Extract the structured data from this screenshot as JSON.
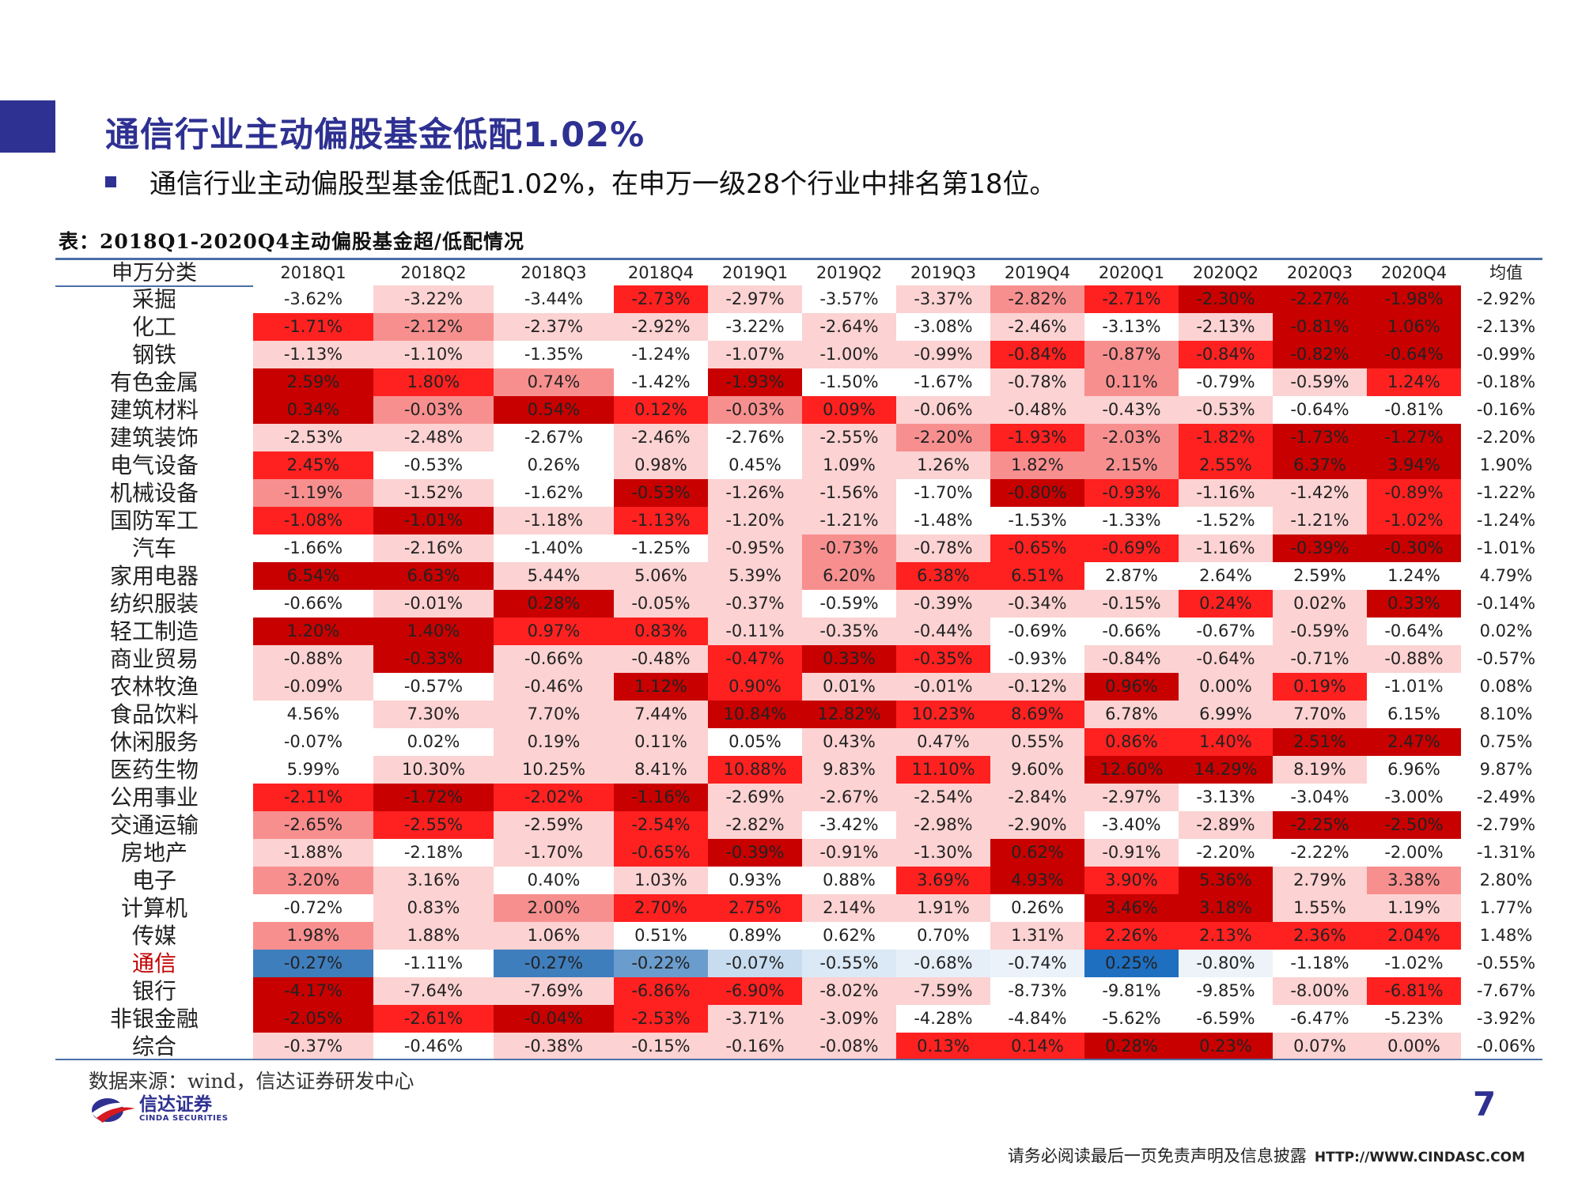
{
  "title": "通信行业主动偏股基金低配1.02%",
  "bullet_text": "通信行业主动偏股型基金低配1.02%，在申万一级28个行业中排名第18位。",
  "table_caption": "表：2018Q1-2020Q4主动偏股基金超/低配情况",
  "table": {
    "header": [
      "申万分类",
      "2018Q1",
      "2018Q2",
      "2018Q3",
      "2018Q4",
      "2019Q1",
      "2019Q2",
      "2019Q3",
      "2019Q4",
      "2020Q1",
      "2020Q2",
      "2020Q3",
      "2020Q4",
      "均值"
    ],
    "highlight_industry": "通信",
    "rows": [
      {
        "name": "采掘",
        "values": [
          "-3.62%",
          "-3.22%",
          "-3.44%",
          "-2.73%",
          "-2.97%",
          "-3.57%",
          "-3.37%",
          "-2.82%",
          "-2.71%",
          "-2.30%",
          "-2.27%",
          "-1.98%"
        ],
        "mean": "-2.92%",
        "colors": [
          "#ffffff",
          "#fcd2d2",
          "#ffffff",
          "#ff2020",
          "#fcd2d2",
          "#ffffff",
          "#fcd2d2",
          "#f88f8f",
          "#ff2020",
          "#c80000",
          "#c80000",
          "#c80000"
        ]
      },
      {
        "name": "化工",
        "values": [
          "-1.71%",
          "-2.12%",
          "-2.37%",
          "-2.92%",
          "-3.22%",
          "-2.64%",
          "-3.08%",
          "-2.46%",
          "-3.13%",
          "-2.13%",
          "-0.81%",
          "1.06%"
        ],
        "mean": "-2.13%",
        "colors": [
          "#ff2020",
          "#f88f8f",
          "#fcd2d2",
          "#fcd2d2",
          "#ffffff",
          "#fcd2d2",
          "#ffffff",
          "#fcd2d2",
          "#ffffff",
          "#fcd2d2",
          "#c80000",
          "#c80000"
        ]
      },
      {
        "name": "钢铁",
        "values": [
          "-1.13%",
          "-1.10%",
          "-1.35%",
          "-1.24%",
          "-1.07%",
          "-1.00%",
          "-0.99%",
          "-0.84%",
          "-0.87%",
          "-0.84%",
          "-0.82%",
          "-0.64%"
        ],
        "mean": "-0.99%",
        "colors": [
          "#fcd2d2",
          "#fcd2d2",
          "#ffffff",
          "#ffffff",
          "#fcd2d2",
          "#fcd2d2",
          "#fcd2d2",
          "#ff2020",
          "#f88f8f",
          "#ff2020",
          "#c80000",
          "#c80000"
        ]
      },
      {
        "name": "有色金属",
        "values": [
          "2.59%",
          "1.80%",
          "0.74%",
          "-1.42%",
          "-1.93%",
          "-1.50%",
          "-1.67%",
          "-0.78%",
          "0.11%",
          "-0.79%",
          "-0.59%",
          "1.24%"
        ],
        "mean": "-0.18%",
        "colors": [
          "#c80000",
          "#ff2020",
          "#f88f8f",
          "#ffffff",
          "#c80000",
          "#ffffff",
          "#ffffff",
          "#fcd2d2",
          "#f88f8f",
          "#ffffff",
          "#fcd2d2",
          "#ff2020"
        ]
      },
      {
        "name": "建筑材料",
        "values": [
          "0.34%",
          "-0.03%",
          "0.54%",
          "0.12%",
          "-0.03%",
          "0.09%",
          "-0.06%",
          "-0.48%",
          "-0.43%",
          "-0.53%",
          "-0.64%",
          "-0.81%"
        ],
        "mean": "-0.16%",
        "colors": [
          "#c80000",
          "#f88f8f",
          "#c80000",
          "#ff2020",
          "#f88f8f",
          "#ff2020",
          "#fcd2d2",
          "#fcd2d2",
          "#fcd2d2",
          "#fcd2d2",
          "#ffffff",
          "#ffffff"
        ]
      },
      {
        "name": "建筑装饰",
        "values": [
          "-2.53%",
          "-2.48%",
          "-2.67%",
          "-2.46%",
          "-2.76%",
          "-2.55%",
          "-2.20%",
          "-1.93%",
          "-2.03%",
          "-1.82%",
          "-1.73%",
          "-1.27%"
        ],
        "mean": "-2.20%",
        "colors": [
          "#fcd2d2",
          "#fcd2d2",
          "#ffffff",
          "#fcd2d2",
          "#ffffff",
          "#fcd2d2",
          "#f88f8f",
          "#ff2020",
          "#f88f8f",
          "#ff2020",
          "#c80000",
          "#c80000"
        ]
      },
      {
        "name": "电气设备",
        "values": [
          "2.45%",
          "-0.53%",
          "0.26%",
          "0.98%",
          "0.45%",
          "1.09%",
          "1.26%",
          "1.82%",
          "2.15%",
          "2.55%",
          "6.37%",
          "3.94%"
        ],
        "mean": "1.90%",
        "colors": [
          "#ff2020",
          "#ffffff",
          "#ffffff",
          "#fcd2d2",
          "#ffffff",
          "#fcd2d2",
          "#fcd2d2",
          "#f88f8f",
          "#f88f8f",
          "#ff2020",
          "#c80000",
          "#c80000"
        ]
      },
      {
        "name": "机械设备",
        "values": [
          "-1.19%",
          "-1.52%",
          "-1.62%",
          "-0.53%",
          "-1.26%",
          "-1.56%",
          "-1.70%",
          "-0.80%",
          "-0.93%",
          "-1.16%",
          "-1.42%",
          "-0.89%"
        ],
        "mean": "-1.22%",
        "colors": [
          "#f88f8f",
          "#fcd2d2",
          "#ffffff",
          "#c80000",
          "#fcd2d2",
          "#fcd2d2",
          "#ffffff",
          "#c80000",
          "#ff2020",
          "#fcd2d2",
          "#fcd2d2",
          "#ff2020"
        ]
      },
      {
        "name": "国防军工",
        "values": [
          "-1.08%",
          "-1.01%",
          "-1.18%",
          "-1.13%",
          "-1.20%",
          "-1.21%",
          "-1.48%",
          "-1.53%",
          "-1.33%",
          "-1.52%",
          "-1.21%",
          "-1.02%"
        ],
        "mean": "-1.24%",
        "colors": [
          "#ff2020",
          "#c80000",
          "#fcd2d2",
          "#ff2020",
          "#fcd2d2",
          "#fcd2d2",
          "#ffffff",
          "#ffffff",
          "#ffffff",
          "#ffffff",
          "#fcd2d2",
          "#ff2020"
        ]
      },
      {
        "name": "汽车",
        "values": [
          "-1.66%",
          "-2.16%",
          "-1.40%",
          "-1.25%",
          "-0.95%",
          "-0.73%",
          "-0.78%",
          "-0.65%",
          "-0.69%",
          "-1.16%",
          "-0.39%",
          "-0.30%"
        ],
        "mean": "-1.01%",
        "colors": [
          "#ffffff",
          "#fcd2d2",
          "#ffffff",
          "#ffffff",
          "#fcd2d2",
          "#f88f8f",
          "#fcd2d2",
          "#ff2020",
          "#ff2020",
          "#fcd2d2",
          "#c80000",
          "#c80000"
        ]
      },
      {
        "name": "家用电器",
        "values": [
          "6.54%",
          "6.63%",
          "5.44%",
          "5.06%",
          "5.39%",
          "6.20%",
          "6.38%",
          "6.51%",
          "2.87%",
          "2.64%",
          "2.59%",
          "1.24%"
        ],
        "mean": "4.79%",
        "colors": [
          "#c80000",
          "#c80000",
          "#fcd2d2",
          "#fcd2d2",
          "#fcd2d2",
          "#f88f8f",
          "#ff2020",
          "#ff2020",
          "#ffffff",
          "#ffffff",
          "#ffffff",
          "#ffffff"
        ]
      },
      {
        "name": "纺织服装",
        "values": [
          "-0.66%",
          "-0.01%",
          "0.28%",
          "-0.05%",
          "-0.37%",
          "-0.59%",
          "-0.39%",
          "-0.34%",
          "-0.15%",
          "0.24%",
          "0.02%",
          "0.33%"
        ],
        "mean": "-0.14%",
        "colors": [
          "#ffffff",
          "#fcd2d2",
          "#c80000",
          "#fcd2d2",
          "#fcd2d2",
          "#ffffff",
          "#fcd2d2",
          "#fcd2d2",
          "#fcd2d2",
          "#ff2020",
          "#fcd2d2",
          "#c80000"
        ]
      },
      {
        "name": "轻工制造",
        "values": [
          "1.20%",
          "1.40%",
          "0.97%",
          "0.83%",
          "-0.11%",
          "-0.35%",
          "-0.44%",
          "-0.69%",
          "-0.66%",
          "-0.67%",
          "-0.59%",
          "-0.64%"
        ],
        "mean": "0.02%",
        "colors": [
          "#c80000",
          "#c80000",
          "#ff2020",
          "#ff2020",
          "#fcd2d2",
          "#fcd2d2",
          "#fcd2d2",
          "#ffffff",
          "#ffffff",
          "#ffffff",
          "#fcd2d2",
          "#ffffff"
        ]
      },
      {
        "name": "商业贸易",
        "values": [
          "-0.88%",
          "-0.33%",
          "-0.66%",
          "-0.48%",
          "-0.47%",
          "0.33%",
          "-0.35%",
          "-0.93%",
          "-0.84%",
          "-0.64%",
          "-0.71%",
          "-0.88%"
        ],
        "mean": "-0.57%",
        "colors": [
          "#fcd2d2",
          "#c80000",
          "#fcd2d2",
          "#fcd2d2",
          "#ff2020",
          "#c80000",
          "#ff2020",
          "#ffffff",
          "#fcd2d2",
          "#fcd2d2",
          "#fcd2d2",
          "#fcd2d2"
        ]
      },
      {
        "name": "农林牧渔",
        "values": [
          "-0.09%",
          "-0.57%",
          "-0.46%",
          "1.12%",
          "0.90%",
          "0.01%",
          "-0.01%",
          "-0.12%",
          "0.96%",
          "0.00%",
          "0.19%",
          "-1.01%"
        ],
        "mean": "0.08%",
        "colors": [
          "#fcd2d2",
          "#ffffff",
          "#fcd2d2",
          "#c80000",
          "#ff2020",
          "#fcd2d2",
          "#fcd2d2",
          "#fcd2d2",
          "#c80000",
          "#fcd2d2",
          "#ff2020",
          "#ffffff"
        ]
      },
      {
        "name": "食品饮料",
        "values": [
          "4.56%",
          "7.30%",
          "7.70%",
          "7.44%",
          "10.84%",
          "12.82%",
          "10.23%",
          "8.69%",
          "6.78%",
          "6.99%",
          "7.70%",
          "6.15%"
        ],
        "mean": "8.10%",
        "colors": [
          "#ffffff",
          "#fcd2d2",
          "#fcd2d2",
          "#fcd2d2",
          "#c80000",
          "#c80000",
          "#ff2020",
          "#ff2020",
          "#fcd2d2",
          "#fcd2d2",
          "#fcd2d2",
          "#ffffff"
        ]
      },
      {
        "name": "休闲服务",
        "values": [
          "-0.07%",
          "0.02%",
          "0.19%",
          "0.11%",
          "0.05%",
          "0.43%",
          "0.47%",
          "0.55%",
          "0.86%",
          "1.40%",
          "2.51%",
          "2.47%"
        ],
        "mean": "0.75%",
        "colors": [
          "#ffffff",
          "#ffffff",
          "#fcd2d2",
          "#fcd2d2",
          "#ffffff",
          "#fcd2d2",
          "#fcd2d2",
          "#fcd2d2",
          "#ff2020",
          "#ff2020",
          "#c80000",
          "#c80000"
        ]
      },
      {
        "name": "医药生物",
        "values": [
          "5.99%",
          "10.30%",
          "10.25%",
          "8.41%",
          "10.88%",
          "9.83%",
          "11.10%",
          "9.60%",
          "12.60%",
          "14.29%",
          "8.19%",
          "6.96%"
        ],
        "mean": "9.87%",
        "colors": [
          "#ffffff",
          "#fcd2d2",
          "#fcd2d2",
          "#fcd2d2",
          "#ff2020",
          "#fcd2d2",
          "#ff2020",
          "#fcd2d2",
          "#c80000",
          "#c80000",
          "#fcd2d2",
          "#ffffff"
        ]
      },
      {
        "name": "公用事业",
        "values": [
          "-2.11%",
          "-1.72%",
          "-2.02%",
          "-1.16%",
          "-2.69%",
          "-2.67%",
          "-2.54%",
          "-2.84%",
          "-2.97%",
          "-3.13%",
          "-3.04%",
          "-3.00%"
        ],
        "mean": "-2.49%",
        "colors": [
          "#ff2020",
          "#c80000",
          "#ff2020",
          "#c80000",
          "#fcd2d2",
          "#fcd2d2",
          "#fcd2d2",
          "#fcd2d2",
          "#fcd2d2",
          "#ffffff",
          "#ffffff",
          "#ffffff"
        ]
      },
      {
        "name": "交通运输",
        "values": [
          "-2.65%",
          "-2.55%",
          "-2.59%",
          "-2.54%",
          "-2.82%",
          "-3.42%",
          "-2.98%",
          "-2.90%",
          "-3.40%",
          "-2.89%",
          "-2.25%",
          "-2.50%"
        ],
        "mean": "-2.79%",
        "colors": [
          "#f88f8f",
          "#ff2020",
          "#fcd2d2",
          "#ff2020",
          "#fcd2d2",
          "#ffffff",
          "#fcd2d2",
          "#fcd2d2",
          "#ffffff",
          "#fcd2d2",
          "#c80000",
          "#c80000"
        ]
      },
      {
        "name": "房地产",
        "values": [
          "-1.88%",
          "-2.18%",
          "-1.70%",
          "-0.65%",
          "-0.39%",
          "-0.91%",
          "-1.30%",
          "0.62%",
          "-0.91%",
          "-2.20%",
          "-2.22%",
          "-2.00%"
        ],
        "mean": "-1.31%",
        "colors": [
          "#fcd2d2",
          "#ffffff",
          "#fcd2d2",
          "#ff2020",
          "#c80000",
          "#fcd2d2",
          "#fcd2d2",
          "#c80000",
          "#fcd2d2",
          "#ffffff",
          "#ffffff",
          "#ffffff"
        ]
      },
      {
        "name": "电子",
        "values": [
          "3.20%",
          "3.16%",
          "0.40%",
          "1.03%",
          "0.93%",
          "0.88%",
          "3.69%",
          "4.93%",
          "3.90%",
          "5.36%",
          "2.79%",
          "3.38%"
        ],
        "mean": "2.80%",
        "colors": [
          "#f88f8f",
          "#fcd2d2",
          "#ffffff",
          "#fcd2d2",
          "#ffffff",
          "#ffffff",
          "#ff2020",
          "#c80000",
          "#ff2020",
          "#c80000",
          "#fcd2d2",
          "#f88f8f"
        ]
      },
      {
        "name": "计算机",
        "values": [
          "-0.72%",
          "0.83%",
          "2.00%",
          "2.70%",
          "2.75%",
          "2.14%",
          "1.91%",
          "0.26%",
          "3.46%",
          "3.18%",
          "1.55%",
          "1.19%"
        ],
        "mean": "1.77%",
        "colors": [
          "#ffffff",
          "#fcd2d2",
          "#f88f8f",
          "#ff2020",
          "#ff2020",
          "#fcd2d2",
          "#fcd2d2",
          "#ffffff",
          "#c80000",
          "#c80000",
          "#fcd2d2",
          "#fcd2d2"
        ]
      },
      {
        "name": "传媒",
        "values": [
          "1.98%",
          "1.88%",
          "1.06%",
          "0.51%",
          "0.89%",
          "0.62%",
          "0.70%",
          "1.31%",
          "2.26%",
          "2.13%",
          "2.36%",
          "2.04%"
        ],
        "mean": "1.48%",
        "colors": [
          "#f88f8f",
          "#fcd2d2",
          "#fcd2d2",
          "#ffffff",
          "#ffffff",
          "#ffffff",
          "#ffffff",
          "#fcd2d2",
          "#ff2020",
          "#ff2020",
          "#ff2020",
          "#ff2020"
        ]
      },
      {
        "name": "通信",
        "values": [
          "-0.27%",
          "-1.11%",
          "-0.27%",
          "-0.22%",
          "-0.07%",
          "-0.55%",
          "-0.68%",
          "-0.74%",
          "0.25%",
          "-0.80%",
          "-1.18%",
          "-1.02%"
        ],
        "mean": "-0.55%",
        "colors": [
          "#3f7ebd",
          "#ffffff",
          "#3f7ebd",
          "#6a9dcd",
          "#c8dcef",
          "#dbe8f5",
          "#e6eff8",
          "#ebf2f9",
          "#1f6fc0",
          "#edf3f9",
          "#ffffff",
          "#ffffff"
        ]
      },
      {
        "name": "银行",
        "values": [
          "-4.17%",
          "-7.64%",
          "-7.69%",
          "-6.86%",
          "-6.90%",
          "-8.02%",
          "-7.59%",
          "-8.73%",
          "-9.81%",
          "-9.85%",
          "-8.00%",
          "-6.81%"
        ],
        "mean": "-7.67%",
        "colors": [
          "#c80000",
          "#fcd2d2",
          "#fcd2d2",
          "#ff2020",
          "#ff2020",
          "#fcd2d2",
          "#fcd2d2",
          "#ffffff",
          "#ffffff",
          "#ffffff",
          "#fcd2d2",
          "#ff2020"
        ]
      },
      {
        "name": "非银金融",
        "values": [
          "-2.05%",
          "-2.61%",
          "-0.04%",
          "-2.53%",
          "-3.71%",
          "-3.09%",
          "-4.28%",
          "-4.84%",
          "-5.62%",
          "-6.59%",
          "-6.47%",
          "-5.23%"
        ],
        "mean": "-3.92%",
        "colors": [
          "#c80000",
          "#ff2020",
          "#c80000",
          "#ff2020",
          "#fcd2d2",
          "#fcd2d2",
          "#ffffff",
          "#ffffff",
          "#ffffff",
          "#ffffff",
          "#ffffff",
          "#ffffff"
        ]
      },
      {
        "name": "综合",
        "values": [
          "-0.37%",
          "-0.46%",
          "-0.38%",
          "-0.15%",
          "-0.16%",
          "-0.08%",
          "0.13%",
          "0.14%",
          "0.28%",
          "0.23%",
          "0.07%",
          "0.00%"
        ],
        "mean": "-0.06%",
        "colors": [
          "#fcd2d2",
          "#ffffff",
          "#fcd2d2",
          "#fcd2d2",
          "#fcd2d2",
          "#fcd2d2",
          "#ff2020",
          "#ff2020",
          "#c80000",
          "#c80000",
          "#fcd2d2",
          "#fcd2d2"
        ]
      }
    ]
  },
  "source": "数据来源：wind，信达证券研发中心",
  "logo": {
    "cn": "信达证券",
    "en": "CINDA SECURITIES"
  },
  "page_number": "7",
  "footer": {
    "disclaimer": "请务必阅读最后一页免责声明及信息披露",
    "url": "HTTP://WWW.CINDASC.COM"
  }
}
